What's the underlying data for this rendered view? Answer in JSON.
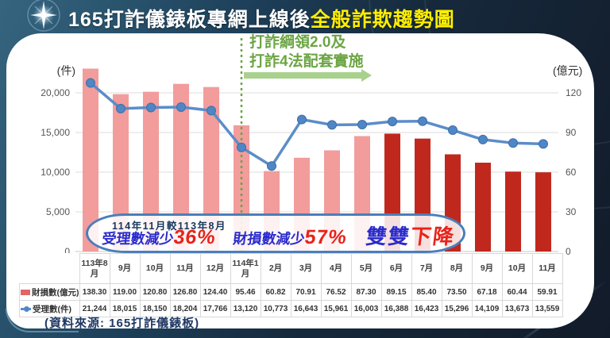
{
  "header": {
    "title_main": "165打詐儀錶板專網上線後",
    "title_highlight": "全般詐欺趨勢圖"
  },
  "annotation": {
    "line1": "打詐綱領2.0及",
    "line2": "打詐4法配套實施"
  },
  "callout": {
    "heading": "114年11月較113年8月",
    "item1_label": "受理數減少",
    "item1_value": "36%",
    "item2_label": "財損數減少",
    "item2_value": "57%",
    "tail_blue": "雙雙",
    "tail_red": "下降"
  },
  "source": "(資料來源: 165打詐儀錶板)",
  "colors": {
    "bar_before": "#F29C9C",
    "bar_after": "#C0281E",
    "line": "#5B8DC9",
    "marker": "#4F86C6",
    "marker_edge": "#3E6EA6",
    "annotation_green": "#6CA544",
    "arrow_green": "#A9D18E",
    "grid": "#DDDDDD",
    "axis_text": "#555555"
  },
  "chart_data": {
    "type": "bar",
    "categories": [
      "113年8月",
      "9月",
      "10月",
      "11月",
      "12月",
      "114年1月",
      "2月",
      "3月",
      "4月",
      "5月",
      "6月",
      "7月",
      "8月",
      "9月",
      "10月",
      "11月"
    ],
    "series": [
      {
        "name": "財損數(億元)",
        "type": "bar",
        "axis": "right",
        "values": [
          138.3,
          119.0,
          120.8,
          126.8,
          124.4,
          95.46,
          60.82,
          70.91,
          76.52,
          87.3,
          89.15,
          85.4,
          73.5,
          67.18,
          60.44,
          59.91
        ]
      },
      {
        "name": "受理數(件)",
        "type": "line",
        "axis": "left",
        "values": [
          21244,
          18015,
          18150,
          18204,
          17766,
          13120,
          10773,
          16643,
          15961,
          16003,
          16388,
          16423,
          15296,
          14109,
          13673,
          13559
        ]
      }
    ],
    "left_axis": {
      "label": "(件)",
      "range": [
        0,
        20000
      ],
      "ticks": [
        0,
        5000,
        10000,
        15000,
        20000
      ],
      "tick_labels": [
        "0",
        "5,000",
        "10,000",
        "15,000",
        "20,000"
      ]
    },
    "right_axis": {
      "label": "(億元)",
      "range": [
        0,
        120
      ],
      "ticks": [
        0,
        30,
        60,
        90,
        120
      ],
      "tick_labels": [
        "0",
        "30",
        "60",
        "90",
        "120"
      ]
    },
    "highlight_from_index": 10,
    "event_marker_index": 5,
    "grid": true,
    "legend_position": "table-left"
  },
  "table": {
    "columns": [
      "113年8月",
      "9月",
      "10月",
      "11月",
      "12月",
      "114年1月",
      "2月",
      "3月",
      "4月",
      "5月",
      "6月",
      "7月",
      "8月",
      "9月",
      "10月",
      "11月"
    ],
    "rows": [
      {
        "label": "財損數(億元)",
        "values": [
          "138.30",
          "119.00",
          "120.80",
          "126.80",
          "124.40",
          "95.46",
          "60.82",
          "70.91",
          "76.52",
          "87.30",
          "89.15",
          "85.40",
          "73.50",
          "67.18",
          "60.44",
          "59.91"
        ]
      },
      {
        "label": "受理數(件)",
        "values": [
          "21,244",
          "18,015",
          "18,150",
          "18,204",
          "17,766",
          "13,120",
          "10,773",
          "16,643",
          "15,961",
          "16,003",
          "16,388",
          "16,423",
          "15,296",
          "14,109",
          "13,673",
          "13,559"
        ]
      }
    ]
  }
}
